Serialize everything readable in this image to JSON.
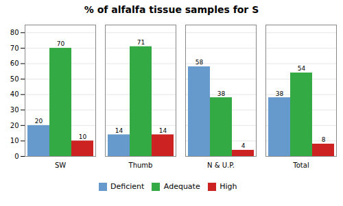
{
  "chart_data": {
    "type": "bar",
    "title": "% of alfalfa tissue samples for S",
    "categories": [
      "SW",
      "Thumb",
      "N & U.P.",
      "Total"
    ],
    "series": [
      {
        "name": "Deficient",
        "color": "#6699CC",
        "values": [
          20,
          14,
          58,
          38
        ]
      },
      {
        "name": "Adequate",
        "color": "#33AA44",
        "values": [
          70,
          71,
          38,
          54
        ]
      },
      {
        "name": "High",
        "color": "#CC2222",
        "values": [
          10,
          14,
          4,
          8
        ]
      }
    ],
    "ylim": [
      0,
      85
    ],
    "yticks": [
      0,
      10,
      20,
      30,
      40,
      50,
      60,
      70,
      80
    ],
    "grid": true,
    "legend": "bottom",
    "data_labels": true
  }
}
